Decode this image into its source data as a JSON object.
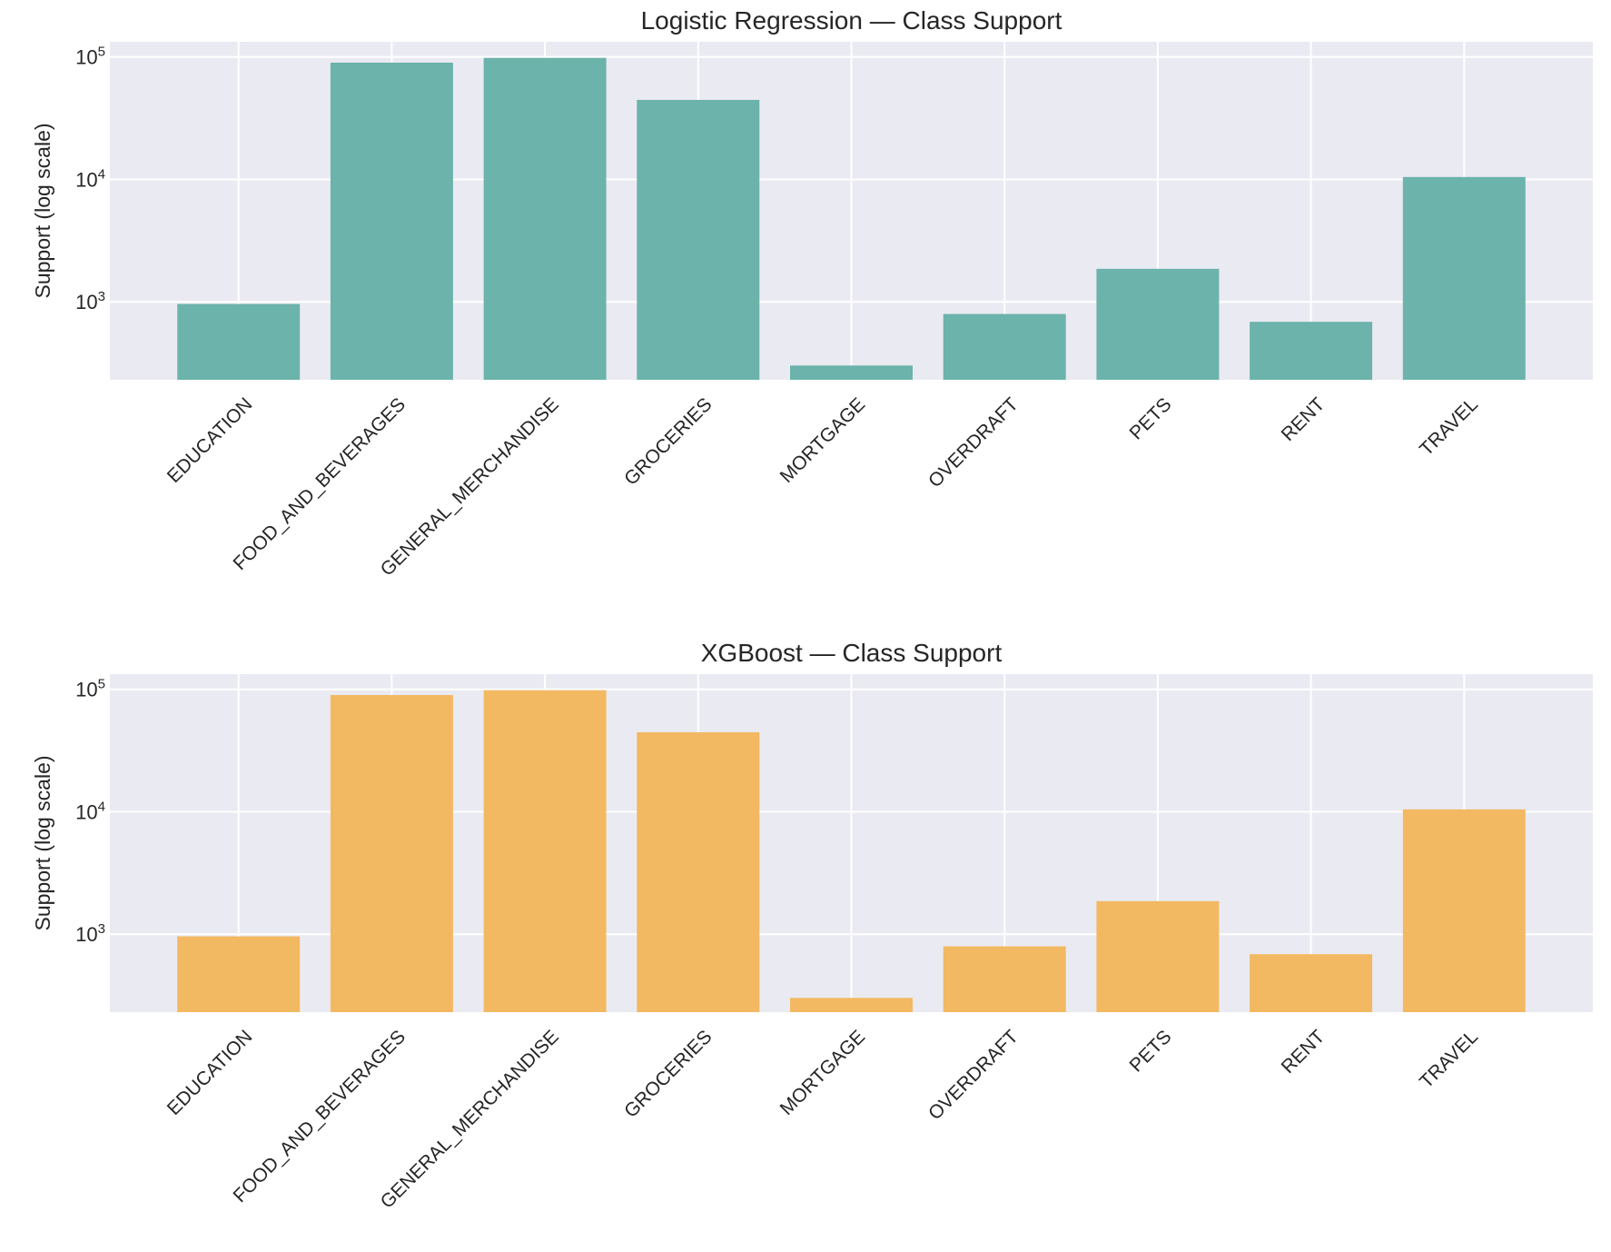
{
  "chart_data": [
    {
      "type": "bar",
      "title": "Logistic Regression — Class Support",
      "xlabel": "",
      "ylabel": "Support (log scale)",
      "yscale": "log",
      "ylim": [
        231,
        133000
      ],
      "yticks": [
        {
          "base": "10",
          "exp": "3",
          "value": 1000
        },
        {
          "base": "10",
          "exp": "4",
          "value": 10000
        },
        {
          "base": "10",
          "exp": "5",
          "value": 100000
        }
      ],
      "grid": true,
      "color": "#6bb3ab",
      "categories": [
        "EDUCATION",
        "FOOD_AND_BEVERAGES",
        "GENERAL_MERCHANDISE",
        "GROCERIES",
        "MORTGAGE",
        "OVERDRAFT",
        "PETS",
        "RENT",
        "TRAVEL"
      ],
      "values": [
        961,
        89800,
        98300,
        44600,
        302,
        796,
        1862,
        687,
        10460
      ],
      "xtick_rotation": 45
    },
    {
      "type": "bar",
      "title": "XGBoost — Class Support",
      "xlabel": "",
      "ylabel": "Support (log scale)",
      "yscale": "log",
      "ylim": [
        231,
        133000
      ],
      "yticks": [
        {
          "base": "10",
          "exp": "3",
          "value": 1000
        },
        {
          "base": "10",
          "exp": "4",
          "value": 10000
        },
        {
          "base": "10",
          "exp": "5",
          "value": 100000
        }
      ],
      "grid": true,
      "color": "#f2b962",
      "categories": [
        "EDUCATION",
        "FOOD_AND_BEVERAGES",
        "GENERAL_MERCHANDISE",
        "GROCERIES",
        "MORTGAGE",
        "OVERDRAFT",
        "PETS",
        "RENT",
        "TRAVEL"
      ],
      "values": [
        961,
        89800,
        98300,
        44600,
        302,
        796,
        1862,
        687,
        10460
      ],
      "xtick_rotation": 45
    }
  ]
}
